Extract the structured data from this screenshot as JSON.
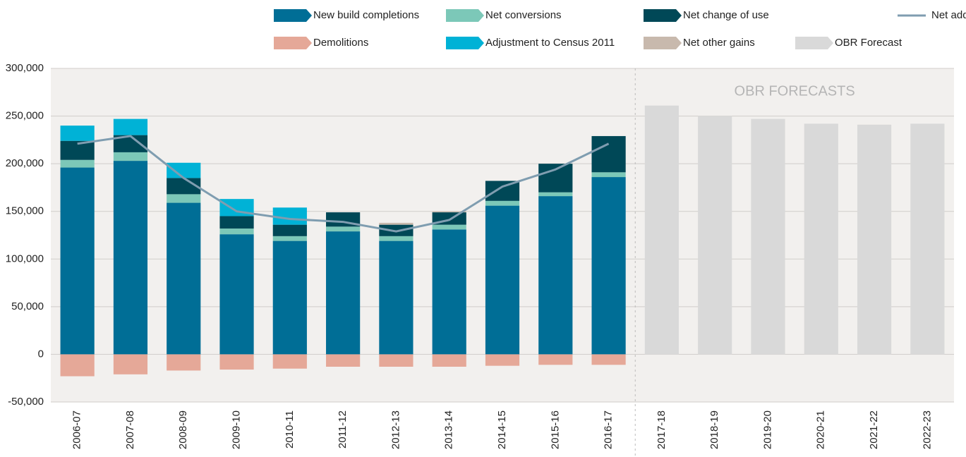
{
  "chart_data": {
    "type": "bar",
    "stacked": true,
    "categories": [
      "2006-07",
      "2007-08",
      "2008-09",
      "2009-10",
      "2010-11",
      "2011-12",
      "2012-13",
      "2013-14",
      "2014-15",
      "2015-16",
      "2016-17",
      "2017-18",
      "2018-19",
      "2019-20",
      "2020-21",
      "2021-22",
      "2022-23"
    ],
    "series": [
      {
        "name": "New build completions",
        "color": "#006e96",
        "values": [
          196000,
          203000,
          159000,
          126000,
          119000,
          129000,
          119000,
          131000,
          156000,
          166000,
          186000,
          null,
          null,
          null,
          null,
          null,
          null
        ]
      },
      {
        "name": "Net conversions",
        "color": "#7cc8b8",
        "values": [
          8000,
          9000,
          9000,
          6000,
          5000,
          5000,
          5000,
          5000,
          5000,
          4000,
          5000,
          null,
          null,
          null,
          null,
          null,
          null
        ]
      },
      {
        "name": "Net change of use",
        "color": "#004857",
        "values": [
          20000,
          18000,
          17000,
          13000,
          12000,
          15000,
          12000,
          13000,
          21000,
          30000,
          38000,
          null,
          null,
          null,
          null,
          null,
          null
        ]
      },
      {
        "name": "Net other gains",
        "color": "#c8b9ad",
        "values": [
          null,
          null,
          null,
          null,
          null,
          null,
          2000,
          1000,
          null,
          null,
          null,
          null,
          null,
          null,
          null,
          null,
          null
        ]
      },
      {
        "name": "Adjustment to Census 2011",
        "color": "#00b2d6",
        "values": [
          16000,
          17000,
          16000,
          18000,
          18000,
          null,
          null,
          null,
          null,
          null,
          null,
          null,
          null,
          null,
          null,
          null,
          null
        ]
      },
      {
        "name": "Demolitions",
        "color": "#e5a898",
        "values": [
          -23000,
          -21000,
          -17000,
          -16000,
          -15000,
          -13000,
          -13000,
          -13000,
          -12000,
          -11000,
          -11000,
          null,
          null,
          null,
          null,
          null,
          null
        ]
      },
      {
        "name": "OBR Forecast",
        "color": "#d9d9d9",
        "values": [
          null,
          null,
          null,
          null,
          null,
          null,
          null,
          null,
          null,
          null,
          null,
          261000,
          250000,
          247000,
          242000,
          241000,
          242000
        ]
      },
      {
        "name": "Net additional dwellings",
        "color": "#7f9db0",
        "type": "line",
        "values": [
          221000,
          229000,
          185000,
          150000,
          142000,
          139000,
          129000,
          141000,
          176000,
          194000,
          221000,
          null,
          null,
          null,
          null,
          null,
          null
        ]
      }
    ],
    "annotations": [
      {
        "text": "OBR FORECASTS"
      }
    ],
    "ylim": [
      -50000,
      300000
    ],
    "yticks": [
      {
        "value": -50000,
        "label": "-50,000"
      },
      0,
      {
        "value": 50000,
        "label": "50,000"
      },
      {
        "value": 100000,
        "label": "100,000"
      },
      {
        "value": 150000,
        "label": "150,000"
      },
      {
        "value": 200000,
        "label": "200,000"
      },
      {
        "value": 250000,
        "label": "250,000"
      },
      {
        "value": 300000,
        "label": "300,000"
      }
    ],
    "grid": true
  }
}
